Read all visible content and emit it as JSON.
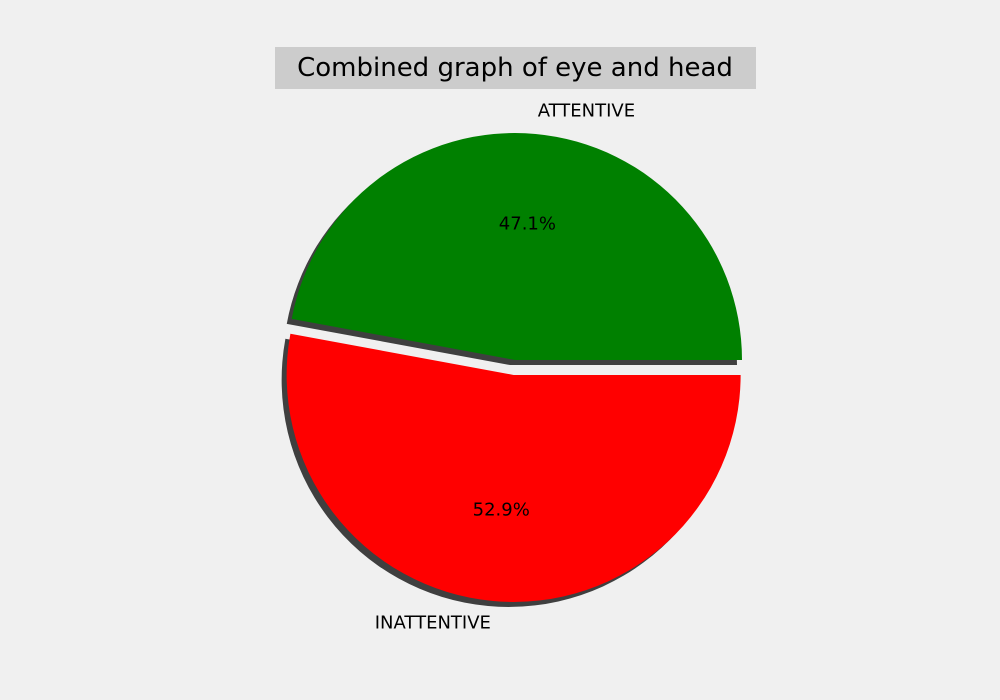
{
  "chart_data": {
    "type": "pie",
    "title": "Combined graph of eye and head",
    "slices": [
      {
        "label": "ATTENTIVE",
        "value": 47.1,
        "pct_label": "47.1%",
        "color": "#008000",
        "exploded": false
      },
      {
        "label": "INATTENTIVE",
        "value": 52.9,
        "pct_label": "52.9%",
        "color": "#ff0000",
        "exploded": true
      }
    ],
    "start_angle_deg": 0,
    "direction": "counterclockwise",
    "shadow": true,
    "legend": "none"
  },
  "colors": {
    "background": "#f0f0f0",
    "title_box": "#cccccc",
    "shadow": "#6e6e6e"
  }
}
